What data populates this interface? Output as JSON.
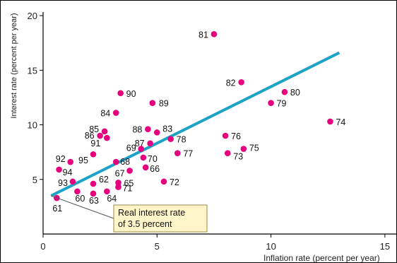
{
  "chart_data": {
    "type": "scatter",
    "title": "",
    "xlabel": "Inflation rate (percent per year)",
    "ylabel": "Interest rate (percent per year)",
    "xlim": [
      0,
      15.5
    ],
    "ylim": [
      0,
      20.2
    ],
    "xticks": [
      0,
      5,
      10,
      15
    ],
    "yticks": [
      5,
      10,
      15,
      20
    ],
    "xtick_labels": [
      "0",
      "5",
      "10",
      "15"
    ],
    "ytick_labels": [
      "5",
      "10",
      "15",
      "20"
    ],
    "grid": false,
    "colors": {
      "points": "#e6007e",
      "line": "#1ea3c8",
      "callout_fill": "#fff5c8",
      "callout_border": "#9a8a40",
      "axis": "#000000"
    },
    "points": [
      {
        "label": "81",
        "x": 7.5,
        "y": 18.3
      },
      {
        "label": "82",
        "x": 8.7,
        "y": 13.9
      },
      {
        "label": "80",
        "x": 10.6,
        "y": 13.0
      },
      {
        "label": "79",
        "x": 10.0,
        "y": 12.0
      },
      {
        "label": "74",
        "x": 12.6,
        "y": 10.3
      },
      {
        "label": "90",
        "x": 3.4,
        "y": 12.9
      },
      {
        "label": "89",
        "x": 4.8,
        "y": 12.0
      },
      {
        "label": "84",
        "x": 3.2,
        "y": 11.1
      },
      {
        "label": "85",
        "x": 2.7,
        "y": 9.4
      },
      {
        "label": "86",
        "x": 2.5,
        "y": 9.0
      },
      {
        "label": "91",
        "x": 2.8,
        "y": 8.8
      },
      {
        "label": "88",
        "x": 4.6,
        "y": 9.6
      },
      {
        "label": "83",
        "x": 5.0,
        "y": 9.3
      },
      {
        "label": "78",
        "x": 5.6,
        "y": 8.7
      },
      {
        "label": "87",
        "x": 4.7,
        "y": 8.3
      },
      {
        "label": "76",
        "x": 8.0,
        "y": 9.0
      },
      {
        "label": "75",
        "x": 8.8,
        "y": 7.8
      },
      {
        "label": "73",
        "x": 8.1,
        "y": 7.4
      },
      {
        "label": "69",
        "x": 4.3,
        "y": 7.8
      },
      {
        "label": "77",
        "x": 5.9,
        "y": 7.4
      },
      {
        "label": "70",
        "x": 4.4,
        "y": 7.0
      },
      {
        "label": "92",
        "x": 1.2,
        "y": 6.6
      },
      {
        "label": "95",
        "x": 2.2,
        "y": 7.3
      },
      {
        "label": "94",
        "x": 0.7,
        "y": 5.9
      },
      {
        "label": "68",
        "x": 3.2,
        "y": 6.6
      },
      {
        "label": "66",
        "x": 4.5,
        "y": 6.1
      },
      {
        "label": "67",
        "x": 3.8,
        "y": 5.8
      },
      {
        "label": "93",
        "x": 1.3,
        "y": 4.8
      },
      {
        "label": "62",
        "x": 2.2,
        "y": 4.6
      },
      {
        "label": "65",
        "x": 3.3,
        "y": 4.7
      },
      {
        "label": "72",
        "x": 5.3,
        "y": 4.8
      },
      {
        "label": "60",
        "x": 1.5,
        "y": 3.9
      },
      {
        "label": "63",
        "x": 2.2,
        "y": 3.7
      },
      {
        "label": "64",
        "x": 2.8,
        "y": 3.9
      },
      {
        "label": "71",
        "x": 3.3,
        "y": 4.3
      },
      {
        "label": "61",
        "x": 0.6,
        "y": 3.3
      }
    ],
    "trend_line": {
      "x": [
        0.35,
        13.0
      ],
      "y": [
        3.5,
        16.6
      ]
    },
    "annotation": {
      "lines": [
        "Real interest rate",
        "of 3.5 percent"
      ],
      "target_x": 0.35,
      "target_y": 3.5
    }
  }
}
